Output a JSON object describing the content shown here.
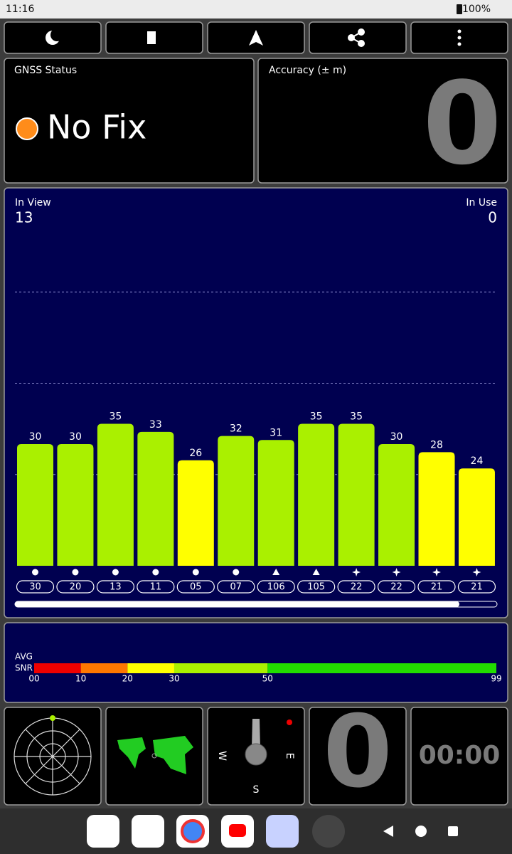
{
  "status_bar": {
    "time": "11:16",
    "battery": "100%"
  },
  "gnss_status": {
    "title": "GNSS Status",
    "fix": "No Fix"
  },
  "accuracy": {
    "title": "Accuracy (± m)",
    "value": "0"
  },
  "chart_data": {
    "type": "bar",
    "in_view_label": "In View",
    "in_view": 13,
    "in_use_label": "In Use",
    "in_use": 0,
    "categories": [
      "30",
      "20",
      "13",
      "11",
      "05",
      "07",
      "106",
      "105",
      "22",
      "22",
      "21",
      "21"
    ],
    "markers": [
      "circle",
      "circle",
      "circle",
      "circle",
      "circle",
      "circle",
      "triangle",
      "triangle",
      "star",
      "star",
      "star",
      "star"
    ],
    "values": [
      30,
      30,
      35,
      33,
      26,
      32,
      31,
      35,
      35,
      30,
      28,
      24
    ],
    "colors": [
      "#aaf000",
      "#aaf000",
      "#aaf000",
      "#aaf000",
      "#ffff00",
      "#aaf000",
      "#aaf000",
      "#aaf000",
      "#aaf000",
      "#aaf000",
      "#ffff00",
      "#ffff00"
    ],
    "ylim": [
      0,
      90
    ],
    "yticks": [
      22.5,
      45,
      67.5
    ],
    "grid": true
  },
  "snr_scale": {
    "label_top": "AVG",
    "label_bottom": "SNR",
    "xlim": [
      0,
      99
    ],
    "segments": [
      {
        "from": 0,
        "to": 10,
        "color": "#ee0000"
      },
      {
        "from": 10,
        "to": 20,
        "color": "#ff7700"
      },
      {
        "from": 20,
        "to": 30,
        "color": "#ffff00"
      },
      {
        "from": 30,
        "to": 50,
        "color": "#aaf000"
      },
      {
        "from": 50,
        "to": 99,
        "color": "#22dd00"
      }
    ],
    "xticks": [
      {
        "value": 0,
        "label": "00"
      },
      10,
      20,
      30,
      50,
      99
    ]
  },
  "compass": {
    "west": "W",
    "east": "E",
    "south": "S"
  },
  "speed": "0",
  "timer": "00:00"
}
